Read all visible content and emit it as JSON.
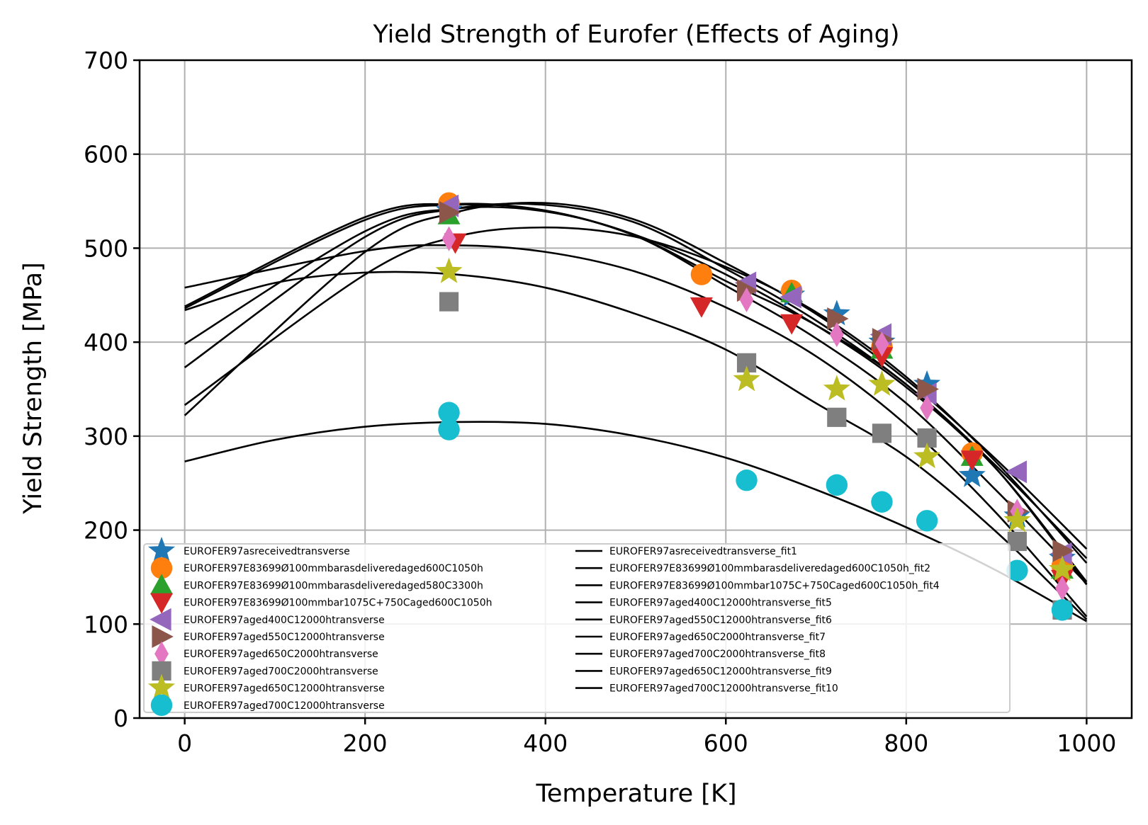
{
  "chart_data": {
    "type": "scatter",
    "title": "Yield Strength of Eurofer (Effects of Aging)",
    "xlabel": "Temperature [K]",
    "ylabel": "Yield Strength [MPa]",
    "xlim": [
      -50,
      1050
    ],
    "ylim": [
      0,
      700
    ],
    "xticks": [
      0,
      200,
      400,
      600,
      800,
      1000
    ],
    "yticks": [
      0,
      100,
      200,
      300,
      400,
      500,
      600,
      700
    ],
    "grid": true,
    "legend_position": "lower-left",
    "series": [
      {
        "name": "EUROFER97asreceivedtransverse",
        "marker": "star",
        "color": "#1f77b4",
        "points": [
          [
            293,
            540
          ],
          [
            673,
            450
          ],
          [
            723,
            430
          ],
          [
            773,
            400
          ],
          [
            823,
            355
          ],
          [
            873,
            258
          ],
          [
            923,
            215
          ],
          [
            973,
            170
          ]
        ]
      },
      {
        "name": "EUROFER97E83699Ø100mmbarasdeliveredaged600C1050h",
        "marker": "circle",
        "color": "#ff7f0e",
        "points": [
          [
            293,
            548
          ],
          [
            573,
            472
          ],
          [
            673,
            455
          ],
          [
            773,
            395
          ],
          [
            873,
            282
          ],
          [
            973,
            162
          ]
        ]
      },
      {
        "name": "EUROFER97E83699Ø100mmbarasdeliveredaged580C3300h",
        "marker": "triangle-up",
        "color": "#2ca02c",
        "points": [
          [
            293,
            535
          ],
          [
            673,
            452
          ],
          [
            773,
            392
          ],
          [
            873,
            278
          ],
          [
            973,
            158
          ]
        ]
      },
      {
        "name": "EUROFER97E83699Ø100mmbar1075C+750Caged600C1050h",
        "marker": "triangle-down",
        "color": "#d62728",
        "points": [
          [
            300,
            506
          ],
          [
            573,
            438
          ],
          [
            673,
            420
          ],
          [
            773,
            385
          ],
          [
            873,
            275
          ],
          [
            973,
            148
          ]
        ]
      },
      {
        "name": "EUROFER97aged400C12000htransverse",
        "marker": "triangle-left",
        "color": "#9467bd",
        "points": [
          [
            293,
            545
          ],
          [
            623,
            463
          ],
          [
            673,
            448
          ],
          [
            773,
            408
          ],
          [
            823,
            345
          ],
          [
            923,
            262
          ],
          [
            973,
            175
          ]
        ]
      },
      {
        "name": "EUROFER97aged550C12000htransverse",
        "marker": "triangle-right",
        "color": "#8c564b",
        "points": [
          [
            293,
            538
          ],
          [
            623,
            455
          ],
          [
            723,
            425
          ],
          [
            773,
            403
          ],
          [
            823,
            350
          ],
          [
            923,
            220
          ],
          [
            973,
            178
          ]
        ]
      },
      {
        "name": "EUROFER97aged650C2000htransverse",
        "marker": "thin-diamond",
        "color": "#e377c2",
        "points": [
          [
            293,
            510
          ],
          [
            623,
            445
          ],
          [
            723,
            408
          ],
          [
            773,
            398
          ],
          [
            823,
            330
          ],
          [
            923,
            220
          ],
          [
            973,
            138
          ]
        ]
      },
      {
        "name": "EUROFER97aged700C2000htransverse",
        "marker": "square",
        "color": "#7f7f7f",
        "points": [
          [
            293,
            443
          ],
          [
            623,
            378
          ],
          [
            723,
            320
          ],
          [
            773,
            303
          ],
          [
            823,
            298
          ],
          [
            923,
            188
          ],
          [
            973,
            115
          ]
        ]
      },
      {
        "name": "EUROFER97aged650C12000htransverse",
        "marker": "star",
        "color": "#bcbd22",
        "points": [
          [
            293,
            475
          ],
          [
            623,
            360
          ],
          [
            723,
            350
          ],
          [
            773,
            355
          ],
          [
            823,
            278
          ],
          [
            923,
            210
          ],
          [
            973,
            158
          ]
        ]
      },
      {
        "name": "EUROFER97aged700C12000htransverse",
        "marker": "circle",
        "color": "#17becf",
        "points": [
          [
            293,
            325
          ],
          [
            293,
            307
          ],
          [
            623,
            253
          ],
          [
            723,
            248
          ],
          [
            773,
            230
          ],
          [
            823,
            210
          ],
          [
            923,
            157
          ],
          [
            973,
            115
          ]
        ]
      }
    ],
    "fits": [
      {
        "name": "EUROFER97asreceivedtransverse_fit1",
        "points": [
          [
            0,
            438
          ],
          [
            200,
            533
          ],
          [
            300,
            547
          ],
          [
            400,
            540
          ],
          [
            500,
            513
          ],
          [
            600,
            465
          ],
          [
            700,
            418
          ],
          [
            800,
            355
          ],
          [
            900,
            265
          ],
          [
            1000,
            142
          ]
        ]
      },
      {
        "name": "EUROFER97E83699Ø100mmbarasdeliveredaged600C1050h_fit2",
        "points": [
          [
            0,
            436
          ],
          [
            200,
            530
          ],
          [
            300,
            546
          ],
          [
            400,
            540
          ],
          [
            500,
            514
          ],
          [
            600,
            472
          ],
          [
            700,
            418
          ],
          [
            800,
            352
          ],
          [
            900,
            265
          ],
          [
            1000,
            145
          ]
        ]
      },
      {
        "name": "EUROFER97E83699Ø100mmbar1075C+750Caged600C1050h_fit4",
        "points": [
          [
            0,
            333
          ],
          [
            200,
            472
          ],
          [
            300,
            512
          ],
          [
            400,
            522
          ],
          [
            500,
            512
          ],
          [
            600,
            480
          ],
          [
            700,
            432
          ],
          [
            800,
            363
          ],
          [
            900,
            272
          ],
          [
            1000,
            165
          ]
        ]
      },
      {
        "name": "EUROFER97aged400C12000htransverse_fit5",
        "points": [
          [
            0,
            322
          ],
          [
            200,
            496
          ],
          [
            300,
            538
          ],
          [
            400,
            548
          ],
          [
            500,
            530
          ],
          [
            600,
            484
          ],
          [
            700,
            430
          ],
          [
            800,
            360
          ],
          [
            900,
            275
          ],
          [
            1000,
            180
          ]
        ]
      },
      {
        "name": "EUROFER97aged550C12000htransverse_fit6",
        "points": [
          [
            0,
            373
          ],
          [
            200,
            512
          ],
          [
            300,
            542
          ],
          [
            400,
            546
          ],
          [
            500,
            527
          ],
          [
            600,
            478
          ],
          [
            700,
            423
          ],
          [
            800,
            355
          ],
          [
            900,
            268
          ],
          [
            1000,
            170
          ]
        ]
      },
      {
        "name": "EUROFER97aged650C2000htransverse_fit7",
        "points": [
          [
            0,
            398
          ],
          [
            200,
            518
          ],
          [
            300,
            542
          ],
          [
            400,
            539
          ],
          [
            500,
            513
          ],
          [
            600,
            460
          ],
          [
            700,
            404
          ],
          [
            800,
            335
          ],
          [
            900,
            242
          ],
          [
            1000,
            143
          ]
        ]
      },
      {
        "name": "EUROFER97aged700C2000htransverse_fit8",
        "points": [
          [
            0,
            458
          ],
          [
            200,
            497
          ],
          [
            300,
            503
          ],
          [
            400,
            496
          ],
          [
            500,
            475
          ],
          [
            600,
            437
          ],
          [
            700,
            385
          ],
          [
            800,
            312
          ],
          [
            900,
            218
          ],
          [
            1000,
            108
          ]
        ]
      },
      {
        "name": "EUROFER97aged650C12000htransverse_fit9",
        "points": [
          [
            0,
            434
          ],
          [
            100,
            463
          ],
          [
            200,
            474
          ],
          [
            300,
            472
          ],
          [
            400,
            458
          ],
          [
            500,
            430
          ],
          [
            600,
            392
          ],
          [
            700,
            335
          ],
          [
            800,
            278
          ],
          [
            900,
            198
          ],
          [
            1000,
            105
          ]
        ]
      },
      {
        "name": "EUROFER97aged700C12000htransverse_fit10",
        "points": [
          [
            0,
            273
          ],
          [
            100,
            296
          ],
          [
            200,
            310
          ],
          [
            300,
            315
          ],
          [
            400,
            313
          ],
          [
            500,
            300
          ],
          [
            600,
            277
          ],
          [
            700,
            243
          ],
          [
            800,
            203
          ],
          [
            900,
            157
          ],
          [
            1000,
            103
          ]
        ]
      }
    ]
  }
}
